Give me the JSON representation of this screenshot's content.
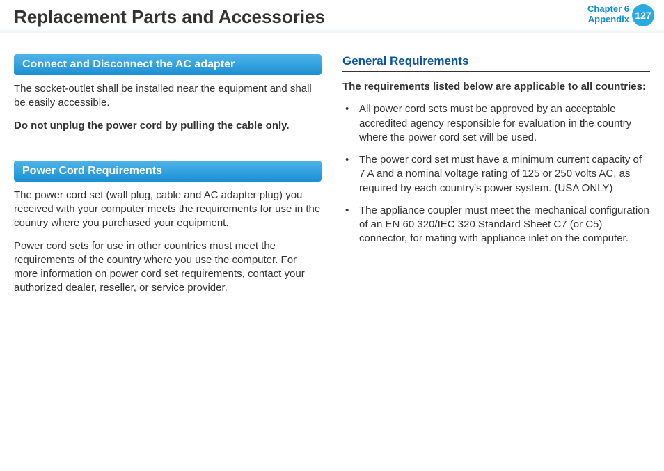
{
  "header": {
    "title": "Replacement Parts and Accessories",
    "chapter_line1": "Chapter 6",
    "chapter_line2": "Appendix",
    "page_number": "127"
  },
  "left_column": {
    "section1": {
      "heading": "Connect and Disconnect the AC adapter",
      "para1": "The socket-outlet shall be installed near the equipment and shall be easily accessible.",
      "para2_bold": "Do not unplug the power cord by pulling the cable only."
    },
    "section2": {
      "heading": "Power Cord Requirements",
      "para1": "The power cord set (wall plug, cable and AC adapter plug) you received with your computer meets the requirements for use in the country where you purchased your equipment.",
      "para2": "Power cord sets for use in other countries must meet the requirements of the country where you use the computer. For more information on power cord set requirements, contact your authorized dealer, reseller, or service provider."
    }
  },
  "right_column": {
    "subheading": "General Requirements",
    "intro_bold": "The requirements listed below are applicable to all countries:",
    "bullets": [
      "All power cord sets must be approved by an acceptable accredited agency responsible for evaluation in the country where the power cord set will be used.",
      "The power cord set must have a minimum current capacity of 7 A and a nominal voltage rating of 125 or 250 volts AC, as required by each country's power system. (USA ONLY)",
      "The appliance coupler must meet the mechanical configuration of an EN 60 320/IEC 320 Standard Sheet C7 (or C5) connector, for mating with appliance inlet on the computer."
    ]
  },
  "colors": {
    "accent_blue": "#0d8dd6",
    "badge_blue": "#29abe2",
    "header_grad_top": "#4fb4e8",
    "header_grad_bottom": "#1a8fd4",
    "subhead_blue": "#0d54a0",
    "text": "#333333"
  }
}
